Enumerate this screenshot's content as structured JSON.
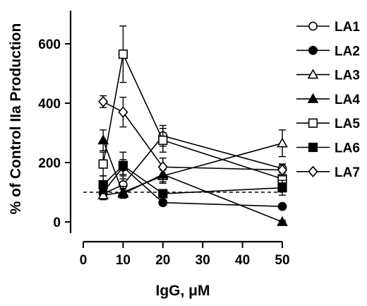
{
  "chart_data": {
    "type": "line",
    "xlabel": "IgG, μM",
    "ylabel": "% of Control IIa Production",
    "xlim": [
      0,
      50
    ],
    "ylim": [
      0,
      700
    ],
    "xticks": [
      0,
      10,
      20,
      30,
      40,
      50
    ],
    "yticks": [
      0,
      200,
      400,
      600
    ],
    "legend_position": "right",
    "reference_line": {
      "y": 100,
      "style": "dashed"
    },
    "x": [
      5,
      10,
      20,
      50
    ],
    "series": [
      {
        "name": "LA1",
        "marker": "circle",
        "filled": false,
        "values": [
          95,
          125,
          290,
          180
        ],
        "errors": [
          20,
          30,
          35,
          15
        ]
      },
      {
        "name": "LA2",
        "marker": "circle",
        "filled": true,
        "values": [
          100,
          185,
          65,
          52
        ],
        "errors": [
          15,
          25,
          8,
          5
        ]
      },
      {
        "name": "LA3",
        "marker": "triangle",
        "filled": false,
        "values": [
          90,
          100,
          155,
          265
        ],
        "errors": [
          15,
          20,
          20,
          45
        ]
      },
      {
        "name": "LA4",
        "marker": "triangle",
        "filled": true,
        "values": [
          275,
          95,
          160,
          0
        ],
        "errors": [
          35,
          15,
          30,
          5
        ]
      },
      {
        "name": "LA5",
        "marker": "square",
        "filled": false,
        "values": [
          195,
          565,
          275,
          145
        ],
        "errors": [
          40,
          95,
          40,
          30
        ]
      },
      {
        "name": "LA6",
        "marker": "square",
        "filled": true,
        "values": [
          125,
          190,
          95,
          115
        ],
        "errors": [
          30,
          45,
          10,
          25
        ]
      },
      {
        "name": "LA7",
        "marker": "diamond",
        "filled": false,
        "values": [
          405,
          370,
          185,
          175
        ],
        "errors": [
          20,
          50,
          30,
          20
        ]
      }
    ]
  }
}
